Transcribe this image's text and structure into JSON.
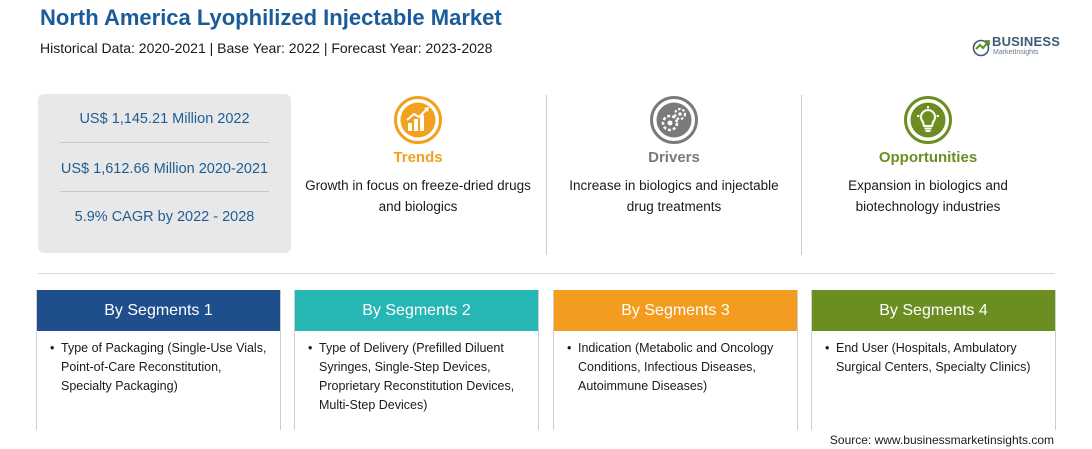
{
  "header": {
    "title": "North America Lyophilized Injectable Market",
    "subtitle": "Historical Data: 2020-2021 | Base Year: 2022 | Forecast Year: 2023-2028"
  },
  "logo": {
    "word": "BUSINESS",
    "sub": "MarketInsights"
  },
  "stats": [
    "US$ 1,145.21 Million 2022",
    "US$ 1,612.66 Million 2020-2021",
    "5.9% CAGR by 2022 - 2028"
  ],
  "features": [
    {
      "title": "Trends",
      "text": "Growth in focus on freeze-dried drugs and biologics",
      "color": "#f2a11f",
      "icon": "trend-chart-icon"
    },
    {
      "title": "Drivers",
      "text": "Increase in biologics and injectable drug treatments",
      "color": "#7a7a7a",
      "icon": "gears-icon"
    },
    {
      "title": "Opportunities",
      "text": "Expansion in biologics and biotechnology industries",
      "color": "#6b8e23",
      "icon": "lightbulb-icon"
    }
  ],
  "segments": [
    {
      "title": "By Segments 1",
      "color": "#1f4e8c",
      "items": [
        "Type of Packaging (Single-Use Vials, Point-of-Care Reconstitution, Specialty Packaging)"
      ]
    },
    {
      "title": "By Segments 2",
      "color": "#26b6b4",
      "items": [
        "Type of Delivery (Prefilled Diluent Syringes, Single-Step Devices, Proprietary Reconstitution Devices, Multi-Step Devices)"
      ]
    },
    {
      "title": "By Segments 3",
      "color": "#f49c1f",
      "items": [
        "Indication (Metabolic and Oncology Conditions, Infectious Diseases, Autoimmune Diseases)"
      ]
    },
    {
      "title": "By Segments 4",
      "color": "#6b8e23",
      "items": [
        "End User (Hospitals, Ambulatory Surgical Centers, Specialty Clinics)"
      ]
    }
  ],
  "source": "Source: www.businessmarketinsights.com"
}
